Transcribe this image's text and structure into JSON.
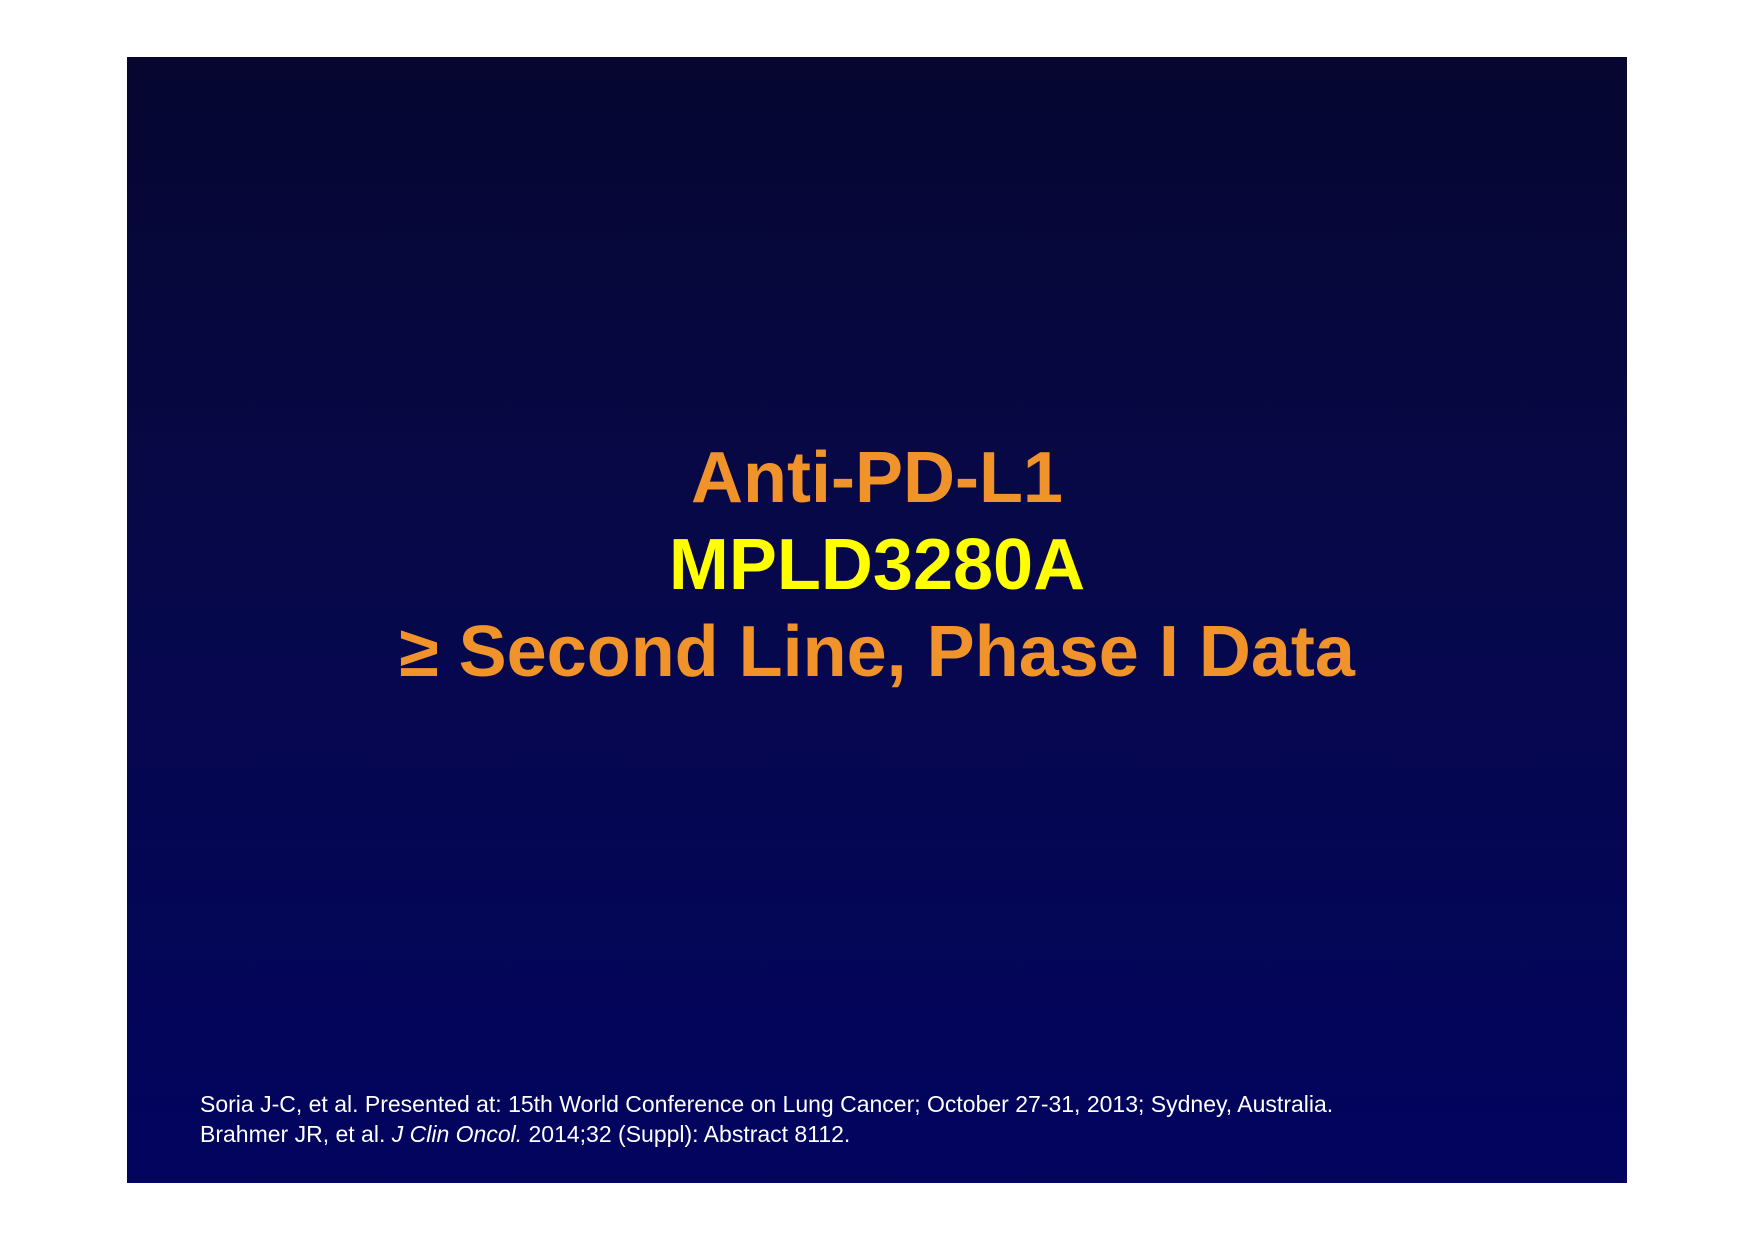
{
  "colors": {
    "page_background": "#ffffff",
    "slide_gradient_top": "#060630",
    "slide_gradient_bottom": "#02045f",
    "title_orange": "#f0932b",
    "title_yellow": "#ffff00",
    "citation_text": "#ffffff"
  },
  "slide": {
    "title": {
      "line1": "Anti-PD-L1",
      "line2": "MPLD3280A",
      "line3": "≥ Second Line,  Phase I Data"
    },
    "citations": {
      "line1": "Soria J-C, et al. Presented at: 15th World Conference on Lung Cancer; October 27-31, 2013; Sydney, Australia.",
      "line2_authors": "Brahmer JR, et al. ",
      "line2_journal": "J Clin Oncol.",
      "line2_rest": " 2014;32 (Suppl): Abstract 8112."
    }
  }
}
